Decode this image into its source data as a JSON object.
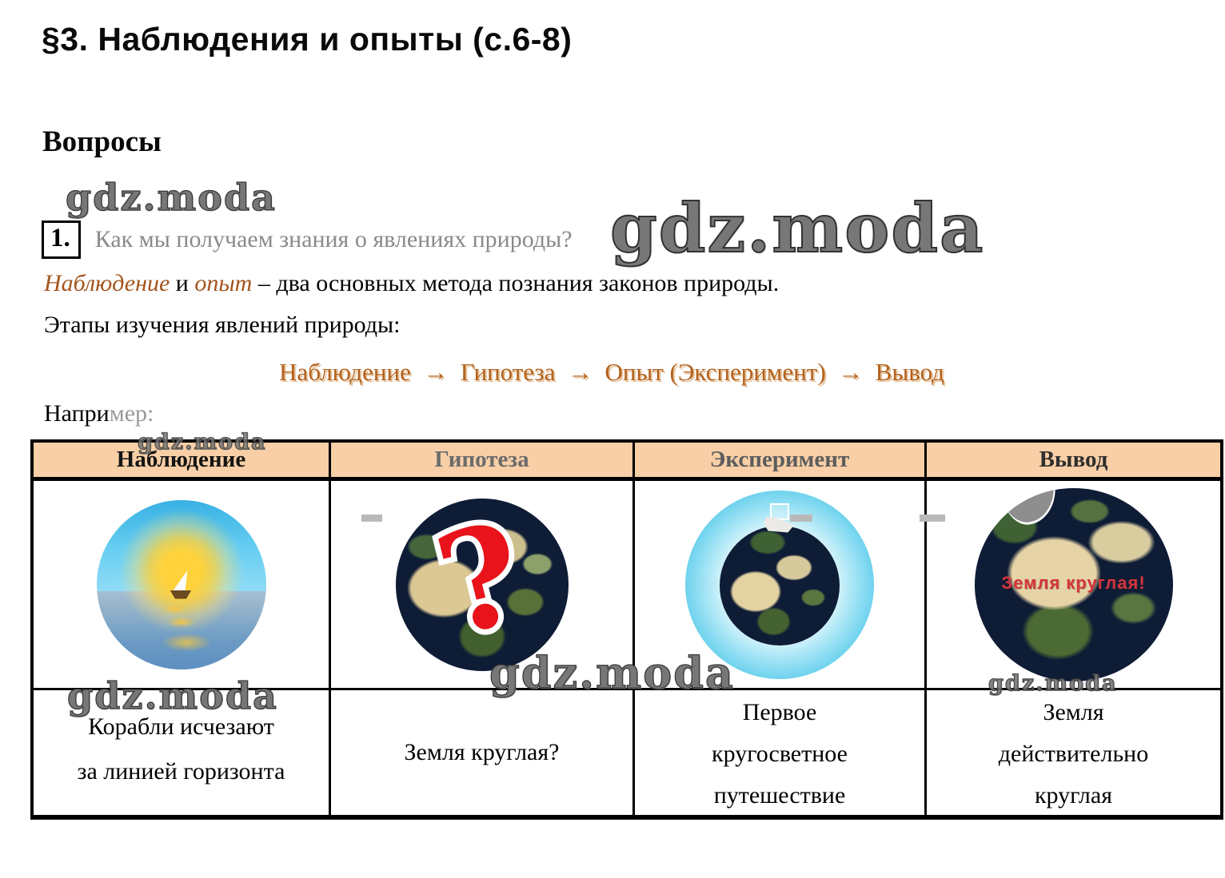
{
  "page": {
    "title": "§3. Наблюдения и опыты (с.6-8)",
    "section_heading": "Вопросы",
    "watermark": "gdz.moda"
  },
  "question": {
    "number": "1.",
    "text": "Как мы получаем знания о явлениях природы?"
  },
  "answer": {
    "term1": "Наблюдение",
    "conjunction": " и ",
    "term2": "опыт",
    "rest": " – два основных метода познания законов природы.",
    "stages_label": "Этапы изучения явлений природы:",
    "flow": "Наблюдение  →  Гипотеза  →  Опыт (Эксперимент)  →  Вывод",
    "example_part1": "Напри",
    "example_part2": "мер:"
  },
  "table": {
    "headers": [
      "Наблюдение",
      "Гипотеза",
      "Эксперимент",
      "Вывод"
    ],
    "cells": [
      {
        "image": "ship-at-horizon",
        "lines": [
          "Корабли исчезают",
          "за линией горизонта"
        ]
      },
      {
        "image": "earth-with-question-mark",
        "question_mark": "?",
        "lines": [
          "Земля круглая?"
        ]
      },
      {
        "image": "earth-circumnavigation",
        "lines": [
          "Первое",
          "кругосветное",
          "путешествие"
        ]
      },
      {
        "image": "earth-round",
        "caption": "Земля круглая!",
        "lines": [
          "Земля",
          "действительно",
          "круглая"
        ]
      }
    ]
  },
  "colors": {
    "header_background": "#f8cfa6",
    "accent_brown": "#b4611c",
    "question_mark_red": "#e8131b",
    "caption_red": "#d5353c",
    "watermark_gray": "#777777"
  }
}
